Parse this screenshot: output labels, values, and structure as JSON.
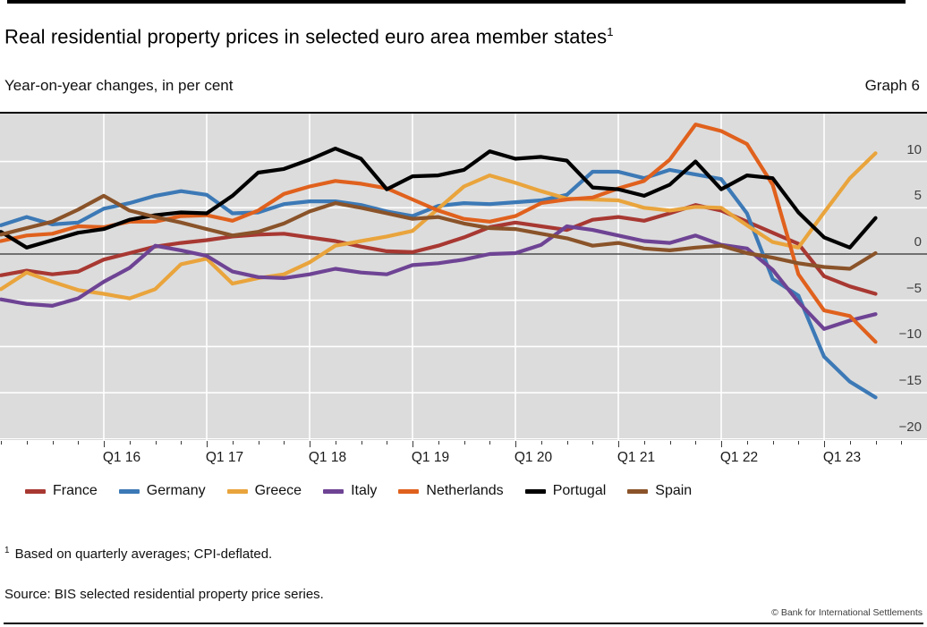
{
  "header": {
    "title": "Real residential property prices in selected euro area member states",
    "title_superscript": "1",
    "subtitle": "Year-on-year changes, in per cent",
    "graph_label": "Graph 6"
  },
  "chart_data": {
    "type": "line",
    "title": "Real residential property prices in selected euro area member states",
    "ylabel": "Year-on-year changes, in per cent",
    "frequency": "quarterly",
    "x_start": "2015-Q1",
    "x_end": "2023-Q3",
    "x_tick_labels": [
      "Q1 16",
      "Q1 17",
      "Q1 18",
      "Q1 19",
      "Q1 20",
      "Q1 21",
      "Q1 22",
      "Q1 23"
    ],
    "y_tick_labels": [
      "10",
      "5",
      "0",
      "−5",
      "−10",
      "−15",
      "−20"
    ],
    "y_tick_values": [
      10,
      5,
      0,
      -5,
      -10,
      -15,
      -20
    ],
    "ylim": [
      -20.5,
      15.3
    ],
    "grid": true,
    "legend_position": "bottom",
    "background_color": "#dcdcdc",
    "gridline_color": "#ffffff",
    "zero_line_color": "#4d4d4d",
    "series": [
      {
        "name": "France",
        "color": "#a83832",
        "values": [
          -2.3,
          -1.8,
          -2.2,
          -1.9,
          -0.6,
          0.1,
          0.8,
          1.2,
          1.5,
          1.9,
          2.1,
          2.2,
          1.8,
          1.4,
          0.8,
          0.3,
          0.2,
          0.9,
          1.8,
          2.9,
          3.4,
          3.0,
          2.6,
          3.7,
          4.0,
          3.6,
          4.4,
          5.3,
          4.7,
          3.5,
          2.3,
          1.1,
          -2.4,
          -3.5,
          -4.3
        ]
      },
      {
        "name": "Germany",
        "color": "#3c79b6",
        "values": [
          3.1,
          4.0,
          3.2,
          3.4,
          4.9,
          5.5,
          6.3,
          6.8,
          6.4,
          4.4,
          4.5,
          5.4,
          5.7,
          5.7,
          5.3,
          4.6,
          4.1,
          5.2,
          5.5,
          5.4,
          5.6,
          5.8,
          6.4,
          8.9,
          8.9,
          8.2,
          9.1,
          8.6,
          8.1,
          4.4,
          -2.7,
          -4.5,
          -11.1,
          -13.8,
          -15.5
        ]
      },
      {
        "name": "Greece",
        "color": "#e9a43c",
        "values": [
          -3.8,
          -2.0,
          -3.0,
          -3.9,
          -4.3,
          -4.8,
          -3.8,
          -1.1,
          -0.5,
          -3.2,
          -2.6,
          -2.2,
          -0.9,
          0.9,
          1.4,
          1.9,
          2.5,
          4.9,
          7.3,
          8.5,
          7.7,
          6.8,
          6.0,
          5.9,
          5.8,
          5.0,
          4.7,
          5.1,
          5.0,
          3.1,
          1.3,
          0.7,
          4.5,
          8.2,
          10.9
        ]
      },
      {
        "name": "Italy",
        "color": "#6e4394",
        "values": [
          -4.9,
          -5.4,
          -5.6,
          -4.8,
          -3.0,
          -1.5,
          0.9,
          0.4,
          -0.2,
          -1.9,
          -2.5,
          -2.6,
          -2.2,
          -1.6,
          -2.0,
          -2.2,
          -1.2,
          -1.0,
          -0.6,
          0.0,
          0.1,
          1.0,
          3.0,
          2.6,
          2.0,
          1.4,
          1.2,
          2.0,
          1.0,
          0.6,
          -1.7,
          -5.2,
          -8.1,
          -7.2,
          -6.5
        ]
      },
      {
        "name": "Netherlands",
        "color": "#e0611d",
        "values": [
          1.4,
          2.0,
          2.2,
          3.0,
          2.9,
          3.5,
          3.5,
          4.1,
          4.2,
          3.6,
          4.7,
          6.5,
          7.3,
          7.9,
          7.6,
          7.1,
          5.9,
          4.7,
          3.8,
          3.5,
          4.1,
          5.5,
          5.9,
          6.1,
          7.1,
          7.9,
          10.2,
          14.0,
          13.3,
          11.9,
          7.5,
          -2.2,
          -6.1,
          -6.7,
          -9.5
        ]
      },
      {
        "name": "Portugal",
        "color": "#000000",
        "values": [
          2.4,
          0.7,
          1.5,
          2.3,
          2.7,
          3.7,
          4.2,
          4.5,
          4.4,
          6.3,
          8.8,
          9.2,
          10.2,
          11.4,
          10.3,
          7.0,
          8.4,
          8.5,
          9.1,
          11.1,
          10.3,
          10.5,
          10.1,
          7.2,
          7.0,
          6.3,
          7.5,
          10.0,
          7.0,
          8.5,
          8.2,
          4.5,
          1.8,
          0.7,
          3.9
        ]
      },
      {
        "name": "Spain",
        "color": "#8a5329",
        "values": [
          2.1,
          2.8,
          3.5,
          4.8,
          6.3,
          4.7,
          4.0,
          3.4,
          2.7,
          2.0,
          2.4,
          3.3,
          4.6,
          5.5,
          5.0,
          4.4,
          3.8,
          4.0,
          3.3,
          2.8,
          2.7,
          2.2,
          1.7,
          0.9,
          1.2,
          0.6,
          0.4,
          0.7,
          0.9,
          0.1,
          -0.4,
          -1.0,
          -1.4,
          -1.6,
          0.1
        ]
      }
    ]
  },
  "footnote": {
    "marker": "1",
    "text": "Based on quarterly averages; CPI-deflated."
  },
  "source": "Source: BIS selected residential property price series.",
  "copyright": "© Bank for International Settlements"
}
